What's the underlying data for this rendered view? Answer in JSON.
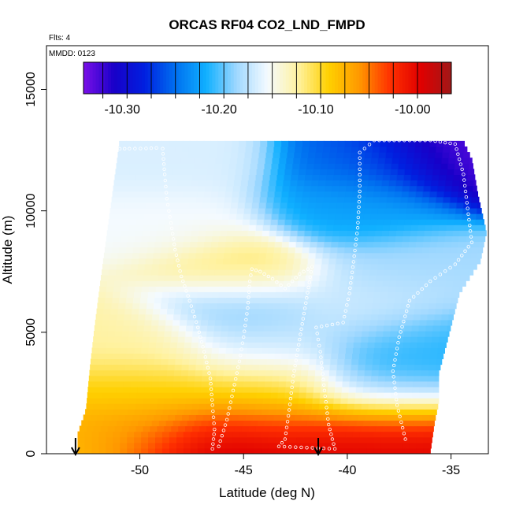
{
  "chart_data": {
    "type": "heatmap",
    "title": "ORCAS RF04 CO2_LND_FMPD",
    "flights_note": "Flts: 4",
    "date_note": "MMDD: 0123",
    "xlabel": "Latitude (deg N)",
    "ylabel": "Altitude (m)",
    "xlim": [
      -54.5,
      -33.2
    ],
    "ylim": [
      0,
      16800
    ],
    "x_ticks": [
      -50,
      -45,
      -40,
      -35
    ],
    "y_ticks": [
      0,
      5000,
      10000,
      15000
    ],
    "x_tick_labels": [
      "-50",
      "-45",
      "-40",
      "-35"
    ],
    "y_tick_labels": [
      "0",
      "5000",
      "10000",
      "15000"
    ],
    "colorbar": {
      "range": [
        -10.34,
        -9.96
      ],
      "tick_values": [
        -10.3,
        -10.2,
        -10.1,
        -10.0
      ],
      "tick_labels": [
        "-10.30",
        "-10.20",
        "-10.10",
        "-10.00"
      ],
      "colors": [
        "#7a10e8",
        "#1800c8",
        "#0020e0",
        "#0070f0",
        "#10b0ff",
        "#a0d8ff",
        "#f4faff",
        "#fff2a0",
        "#ffd000",
        "#ff9800",
        "#ff3000",
        "#e00000",
        "#a01818"
      ]
    },
    "arrows_at_latitude": [
      -53.1,
      -41.4
    ],
    "domain": {
      "left_edge": [
        [
          0,
          -53.0
        ],
        [
          700,
          -53.0
        ],
        [
          1700,
          -52.6
        ],
        [
          3500,
          -52.4
        ],
        [
          5000,
          -52.2
        ],
        [
          7000,
          -51.9
        ],
        [
          9500,
          -51.5
        ],
        [
          12600,
          -51.0
        ]
      ],
      "right_edge": [
        [
          0,
          -36.0
        ],
        [
          1200,
          -35.8
        ],
        [
          2000,
          -35.6
        ],
        [
          3200,
          -35.6
        ],
        [
          4500,
          -35.2
        ],
        [
          6500,
          -34.6
        ],
        [
          7800,
          -33.6
        ],
        [
          9000,
          -33.3
        ],
        [
          10500,
          -33.7
        ],
        [
          12000,
          -34.0
        ],
        [
          12900,
          -34.5
        ]
      ]
    },
    "field_samples": [
      {
        "alt": 0,
        "lat": -52.0,
        "value": -10.08
      },
      {
        "alt": 0,
        "lat": -48.0,
        "value": -9.99
      },
      {
        "alt": 0,
        "lat": -45.0,
        "value": -9.97
      },
      {
        "alt": 0,
        "lat": -40.0,
        "value": -9.99
      },
      {
        "alt": 0,
        "lat": -37.0,
        "value": -9.99
      },
      {
        "alt": 1000,
        "lat": -50.0,
        "value": -10.06
      },
      {
        "alt": 1000,
        "lat": -44.0,
        "value": -10.03
      },
      {
        "alt": 1000,
        "lat": -38.0,
        "value": -10.01
      },
      {
        "alt": 2500,
        "lat": -50.0,
        "value": -10.09
      },
      {
        "alt": 2500,
        "lat": -44.0,
        "value": -10.1
      },
      {
        "alt": 2500,
        "lat": -38.0,
        "value": -10.2
      },
      {
        "alt": 4500,
        "lat": -50.0,
        "value": -10.12
      },
      {
        "alt": 4500,
        "lat": -44.0,
        "value": -10.16
      },
      {
        "alt": 4500,
        "lat": -37.0,
        "value": -10.21
      },
      {
        "alt": 6000,
        "lat": -45.0,
        "value": -10.2
      },
      {
        "alt": 6000,
        "lat": -39.0,
        "value": -10.16
      },
      {
        "alt": 7500,
        "lat": -45.0,
        "value": -10.1
      },
      {
        "alt": 7500,
        "lat": -38.0,
        "value": -10.18
      },
      {
        "alt": 9500,
        "lat": -48.0,
        "value": -10.15
      },
      {
        "alt": 10000,
        "lat": -40.0,
        "value": -10.22
      },
      {
        "alt": 12000,
        "lat": -48.0,
        "value": -10.16
      },
      {
        "alt": 12000,
        "lat": -39.0,
        "value": -10.25
      },
      {
        "alt": 12500,
        "lat": -35.0,
        "value": -10.33
      }
    ],
    "flight_track": [
      [
        -51.2,
        12550
      ],
      [
        -50.5,
        12560
      ],
      [
        -49.7,
        12570
      ],
      [
        -49.2,
        12590
      ],
      [
        -48.9,
        12560
      ],
      [
        -48.8,
        11500
      ],
      [
        -48.7,
        10500
      ],
      [
        -48.5,
        9500
      ],
      [
        -48.3,
        8400
      ],
      [
        -48.0,
        7300
      ],
      [
        -47.6,
        6300
      ],
      [
        -47.2,
        5200
      ],
      [
        -46.9,
        4200
      ],
      [
        -46.6,
        3100
      ],
      [
        -46.5,
        2000
      ],
      [
        -46.4,
        1000
      ],
      [
        -46.5,
        200
      ],
      [
        -46.2,
        300
      ],
      [
        -45.8,
        1400
      ],
      [
        -45.5,
        2600
      ],
      [
        -45.2,
        3800
      ],
      [
        -45.0,
        4800
      ],
      [
        -44.8,
        6000
      ],
      [
        -44.7,
        7100
      ],
      [
        -44.6,
        7600
      ],
      [
        -44.2,
        7500
      ],
      [
        -43.6,
        7200
      ],
      [
        -43.0,
        6800
      ],
      [
        -42.3,
        7400
      ],
      [
        -41.7,
        7700
      ],
      [
        -42.0,
        6200
      ],
      [
        -42.3,
        4700
      ],
      [
        -42.6,
        3200
      ],
      [
        -42.8,
        1800
      ],
      [
        -43.0,
        600
      ],
      [
        -43.3,
        300
      ],
      [
        -40.6,
        200
      ],
      [
        -40.9,
        1200
      ],
      [
        -41.1,
        2600
      ],
      [
        -41.3,
        4200
      ],
      [
        -41.5,
        5200
      ],
      [
        -40.2,
        5400
      ],
      [
        -39.9,
        6600
      ],
      [
        -39.7,
        7900
      ],
      [
        -39.5,
        9300
      ],
      [
        -39.4,
        10800
      ],
      [
        -39.4,
        12400
      ],
      [
        -38.7,
        12900
      ],
      [
        -37.5,
        12900
      ],
      [
        -36.0,
        12900
      ],
      [
        -34.8,
        12750
      ],
      [
        -34.4,
        11500
      ],
      [
        -34.2,
        10100
      ],
      [
        -34.0,
        8700
      ],
      [
        -34.8,
        7800
      ],
      [
        -36.0,
        7100
      ],
      [
        -37.0,
        6300
      ],
      [
        -37.5,
        4800
      ],
      [
        -37.8,
        3400
      ],
      [
        -37.6,
        2000
      ],
      [
        -37.2,
        600
      ]
    ]
  }
}
